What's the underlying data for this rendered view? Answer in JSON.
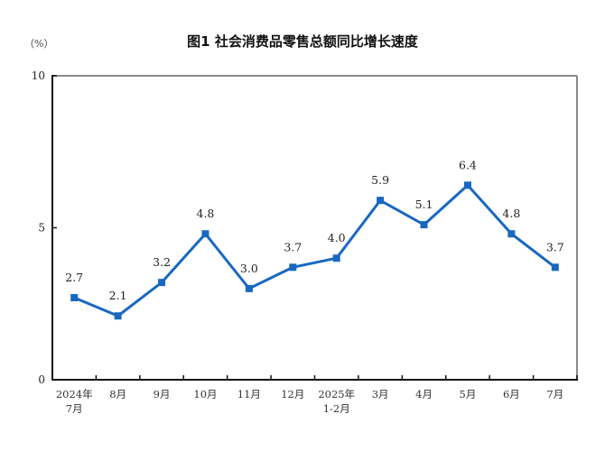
{
  "header": {
    "title": "图1  社会消费品零售总额同比增长速度",
    "unit_label": "（%）"
  },
  "colors": {
    "line": "#1868c0",
    "axis": "#111111",
    "frame": "#8a8a8a"
  },
  "chart_data": {
    "type": "line",
    "title": "图1  社会消费品零售总额同比增长速度",
    "xlabel": "",
    "ylabel": "（%）",
    "ylim": [
      0,
      10
    ],
    "yticks": [
      0,
      5,
      10
    ],
    "grid": false,
    "legend": null,
    "categories": [
      "2024年\n7月",
      "8月",
      "9月",
      "10月",
      "11月",
      "12月",
      "2025年\n1-2月",
      "3月",
      "4月",
      "5月",
      "6月",
      "7月"
    ],
    "series": [
      {
        "name": "社会消费品零售总额同比增长速度",
        "values": [
          2.7,
          2.1,
          3.2,
          4.8,
          3.0,
          3.7,
          4.0,
          5.9,
          5.1,
          6.4,
          4.8,
          3.7
        ],
        "labels": [
          "2.7",
          "2.1",
          "3.2",
          "4.8",
          "3.0",
          "3.7",
          "4.0",
          "5.9",
          "5.1",
          "6.4",
          "4.8",
          "3.7"
        ],
        "marker": "square"
      }
    ]
  }
}
